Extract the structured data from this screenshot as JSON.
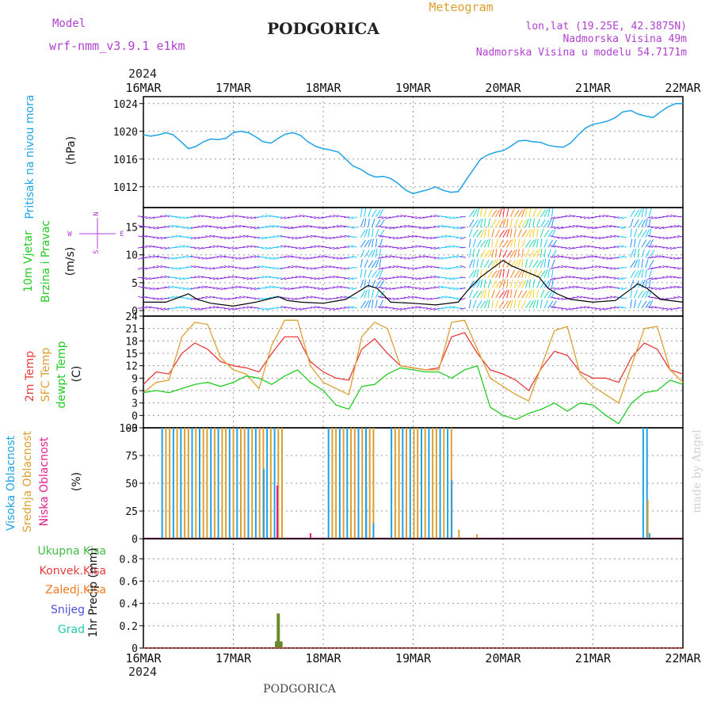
{
  "header": {
    "model_label": "Model",
    "model_name": "wrf-nmm_v3.9.1 e1km",
    "title": "PODGORICA",
    "subtitle": "Meteogram",
    "coords": "lon,lat (19.25E, 42.3875N)",
    "elevation": "Nadmorska Visina 49m",
    "model_elevation": "Nadmorska Visina u modelu 54.7171m",
    "year": "2024",
    "footer": "PODGORICA",
    "watermark": "made by Angel"
  },
  "colors": {
    "pressure": "#1fa3e8",
    "wind_speed": "#000000",
    "temp_2m": "#e83c3c",
    "temp_sfc": "#dca030",
    "dewpoint": "#22cc22",
    "cloud_high": "#1fa3e8",
    "cloud_mid": "#dca030",
    "cloud_low": "#e0208c",
    "precip_total": "#44bb44",
    "precip_conv": "#e83c3c",
    "precip_freezing": "#f07a20",
    "snow": "#5050dd",
    "hail": "#22ccaa",
    "purple_text": "#b040d0"
  },
  "chart_data": {
    "type": "meteogram",
    "time_axis": {
      "labels": [
        "16MAR",
        "17MAR",
        "18MAR",
        "19MAR",
        "20MAR",
        "21MAR",
        "22MAR"
      ],
      "start": "2024-03-16",
      "end": "2024-03-22",
      "days": 6
    },
    "panels": {
      "pressure": {
        "ylabel": "Pritisak na nivou mora",
        "unit": "(hPa)",
        "ylim": [
          1009,
          1025
        ],
        "ticks": [
          1012,
          1016,
          1020,
          1024
        ],
        "series": {
          "name": "",
          "x": [
            0,
            0.08,
            0.17,
            0.25,
            0.33,
            0.42,
            0.5,
            0.58,
            0.67,
            0.75,
            0.83,
            0.92,
            1,
            1.08,
            1.17,
            1.25,
            1.33,
            1.42,
            1.5,
            1.58,
            1.67,
            1.75,
            1.83,
            1.92,
            2,
            2.08,
            2.17,
            2.25,
            2.33,
            2.42,
            2.5,
            2.58,
            2.67,
            2.75,
            2.83,
            2.92,
            3,
            3.08,
            3.17,
            3.25,
            3.33,
            3.42,
            3.5,
            3.58,
            3.67,
            3.75,
            3.83,
            3.92,
            4,
            4.08,
            4.17,
            4.25,
            4.33,
            4.42,
            4.5,
            4.58,
            4.67,
            4.75,
            4.83,
            4.92,
            5,
            5.08,
            5.17,
            5.25,
            5.33,
            5.42,
            5.5,
            5.58,
            5.67,
            5.75,
            5.83,
            5.92,
            6
          ],
          "values": [
            1019.5,
            1019.3,
            1019.5,
            1019.8,
            1019.5,
            1018.5,
            1017.5,
            1017.8,
            1018.5,
            1018.9,
            1018.8,
            1019.0,
            1019.8,
            1020.0,
            1019.8,
            1019.2,
            1018.5,
            1018.3,
            1019.0,
            1019.6,
            1019.8,
            1019.4,
            1018.5,
            1017.8,
            1017.5,
            1017.3,
            1017.0,
            1016.0,
            1015.0,
            1014.5,
            1013.8,
            1013.4,
            1013.5,
            1013.2,
            1012.5,
            1011.5,
            1011.0,
            1011.3,
            1011.6,
            1012.0,
            1011.5,
            1011.2,
            1011.3,
            1012.8,
            1014.5,
            1016.0,
            1016.6,
            1017.0,
            1017.2,
            1017.8,
            1018.6,
            1018.7,
            1018.5,
            1018.4,
            1018.0,
            1017.8,
            1017.7,
            1018.3,
            1019.4,
            1020.5,
            1021.0,
            1021.2,
            1021.5,
            1022.0,
            1022.8,
            1023.0,
            1022.5,
            1022.2,
            1022.0,
            1022.8,
            1023.5,
            1024.0,
            1024.0
          ]
        }
      },
      "wind": {
        "ylabel": "10m Vjetar",
        "ylabel2": "Brzina i Pravac",
        "unit": "(m/s)",
        "compass": {
          "n": "N",
          "s": "S",
          "e": "E",
          "w": "W"
        },
        "ylim": [
          -1,
          18.5
        ],
        "ticks": [
          0,
          5,
          10,
          15
        ],
        "speed": {
          "x": [
            0,
            0.25,
            0.5,
            0.6,
            0.75,
            1,
            1.25,
            1.5,
            1.6,
            1.75,
            2,
            2.25,
            2.5,
            2.6,
            2.75,
            3,
            3.25,
            3.5,
            3.6,
            3.75,
            4,
            4.1,
            4.25,
            4.4,
            4.5,
            4.6,
            4.75,
            5,
            5.25,
            5.5,
            5.6,
            5.75,
            6
          ],
          "values": [
            1.5,
            1.5,
            3.0,
            2.0,
            1.3,
            0.8,
            1.5,
            2.5,
            1.8,
            1.5,
            1.3,
            2.0,
            4.5,
            4.0,
            1.5,
            1.3,
            1.0,
            1.5,
            3.5,
            6.0,
            9.0,
            8.0,
            7.0,
            6.0,
            4.0,
            3.0,
            2.0,
            1.5,
            1.8,
            4.8,
            4.0,
            2.0,
            1.5
          ]
        },
        "max_direction_changes": "varies"
      },
      "temperature": {
        "labels": [
          "2m Temp",
          "SFC Temp",
          "dewpt Temp"
        ],
        "unit": "(C)",
        "ylim": [
          -3,
          24
        ],
        "ticks": [
          -3,
          0,
          3,
          6,
          9,
          12,
          15,
          18,
          21,
          24
        ],
        "series": [
          {
            "name": "2m Temp",
            "values": [
              7.5,
              10.5,
              10.0,
              15.0,
              17.5,
              16.0,
              13.0,
              12.0,
              11.5,
              10.5,
              15.0,
              19.0,
              19.0,
              13.0,
              10.5,
              9.0,
              8.5,
              16.0,
              18.5,
              15.0,
              12.0,
              11.5,
              11.0,
              11.5,
              19.0,
              20.0,
              15.0,
              11.0,
              10.0,
              8.5,
              6.0,
              11.5,
              15.5,
              14.5,
              10.5,
              9.0,
              9.0,
              8.0,
              14.0,
              17.5,
              16.0,
              11.0,
              10.0
            ]
          },
          {
            "name": "SFC Temp",
            "values": [
              5.5,
              8.0,
              8.5,
              19.0,
              22.5,
              22.0,
              14.0,
              11.0,
              10.0,
              6.5,
              17.0,
              23.0,
              23.0,
              12.0,
              8.0,
              6.5,
              5.0,
              19.0,
              22.5,
              21.0,
              12.0,
              11.5,
              11.0,
              11.0,
              22.5,
              23.0,
              16.0,
              9.0,
              7.0,
              5.0,
              3.5,
              12.0,
              20.5,
              21.5,
              10.0,
              7.0,
              5.0,
              3.0,
              12.0,
              21.0,
              21.5,
              11.0,
              8.0
            ]
          },
          {
            "name": "dewpt Temp",
            "values": [
              5.5,
              6.0,
              5.5,
              6.5,
              7.5,
              8.0,
              7.0,
              8.0,
              9.5,
              9.0,
              7.5,
              9.5,
              11.0,
              8.0,
              6.0,
              2.5,
              1.5,
              7.0,
              7.5,
              10.0,
              11.5,
              11.0,
              10.5,
              10.5,
              9.0,
              11.0,
              12.0,
              2.0,
              0.0,
              -1.0,
              0.5,
              1.5,
              3.0,
              1.0,
              3.0,
              2.5,
              0.0,
              -2.0,
              3.0,
              5.5,
              6.0,
              8.5,
              7.5
            ]
          }
        ]
      },
      "clouds": {
        "labels": [
          "Visoka Oblacnost",
          "Srednja Oblacnost",
          "Niska Oblacnost"
        ],
        "unit": "(%)",
        "ylim": [
          0,
          100
        ],
        "ticks": [
          0,
          25,
          50,
          75,
          100
        ],
        "intervals_100pct": [
          {
            "from": 0.2,
            "to": 1.55,
            "type": "mixed"
          },
          {
            "from": 2.05,
            "to": 2.55,
            "type": "mixed"
          },
          {
            "from": 2.75,
            "to": 3.45,
            "type": "mixed"
          },
          {
            "from": 5.55,
            "to": 5.62,
            "type": "high"
          }
        ]
      },
      "precip": {
        "labels": [
          "Ukupna Kisa",
          "Konvek.Kisa",
          "Zaledj.Kisa",
          "Snijeg",
          "Grad"
        ],
        "unit": "1hr Precip (mm)",
        "ylim": [
          0,
          0.98
        ],
        "ticks": [
          0,
          0.2,
          0.4,
          0.6,
          0.8
        ],
        "bars": [
          {
            "x": 1.48,
            "value": 0.06
          },
          {
            "x": 1.5,
            "value": 0.31
          },
          {
            "x": 1.53,
            "value": 0.06
          }
        ]
      }
    }
  }
}
